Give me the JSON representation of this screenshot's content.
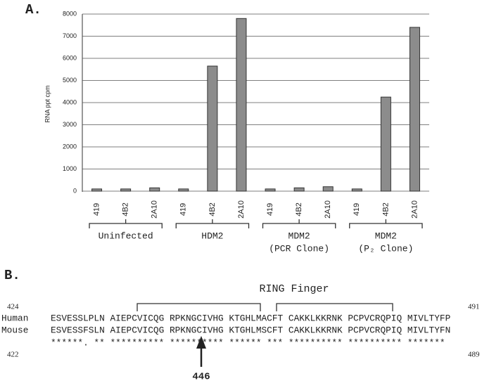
{
  "panel_a_label": "A.",
  "panel_b_label": "B.",
  "chart_data": {
    "type": "bar",
    "ylabel": "RNA ppt cpm",
    "categories": [
      "419",
      "4B2",
      "2A10",
      "419",
      "4B2",
      "2A10",
      "419",
      "4B2",
      "2A10",
      "419",
      "4B2",
      "2A10"
    ],
    "values": [
      100,
      100,
      150,
      100,
      5650,
      7800,
      100,
      150,
      200,
      100,
      4250,
      7400
    ],
    "color": "#8c8c8c",
    "ylim": [
      0,
      8000
    ],
    "yticks": [
      0,
      1000,
      2000,
      3000,
      4000,
      5000,
      6000,
      7000,
      8000
    ],
    "grid": true,
    "groups": [
      {
        "lines": [
          "Uninfected"
        ]
      },
      {
        "lines": [
          "HDM2"
        ]
      },
      {
        "lines": [
          "MDM2",
          "(PCR Clone)"
        ]
      },
      {
        "lines": [
          "MDM2",
          "(P₂ Clone)"
        ]
      }
    ]
  },
  "alignment": {
    "title": "RING Finger",
    "rows": [
      {
        "name": "Human",
        "start": 424,
        "end": 491,
        "sequence": "ESVESSLPLN AIEPCVICQG RPKNGCIVHG KTGHLMACFT CAKKLKKRNK PCPVCRQPIQ MIVLTYFP"
      },
      {
        "name": "Mouse",
        "start": 422,
        "end": 489,
        "sequence": "ESVESSFSLN AIEPCVICQG RPKNGCIVHG KTGHLMSCFT CAKKLKKRNK PCPVCRQPIQ MIVLTYFN"
      }
    ],
    "conservation": "******. ** ********** ********** ****** *** ********** ********** *******",
    "marker": 446
  }
}
